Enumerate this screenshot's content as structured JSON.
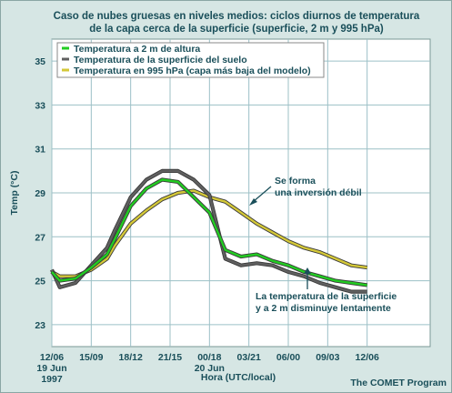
{
  "chart_data": {
    "type": "line",
    "title": "Caso de nubes gruesas en niveles medios: ciclos diurnos de temperatura",
    "subtitle": "de la capa cerca de la superficie (superficie, 2 m y 995 hPa)",
    "xlabel": "Hora (UTC/local)",
    "ylabel": "Temp (°C)",
    "ylim": [
      22,
      36
    ],
    "xlim": [
      0,
      48
    ],
    "yticks": [
      23,
      25,
      27,
      29,
      31,
      33,
      35
    ],
    "xticks": [
      {
        "x": 0,
        "label": "12/06",
        "sub1": "19 Jun",
        "sub2": "1997"
      },
      {
        "x": 5,
        "label": "15/09"
      },
      {
        "x": 10,
        "label": "18/12"
      },
      {
        "x": 15,
        "label": "21/15"
      },
      {
        "x": 20,
        "label": "00/18",
        "sub1": "20 Jun"
      },
      {
        "x": 25,
        "label": "03/21"
      },
      {
        "x": 30,
        "label": "06/00"
      },
      {
        "x": 35,
        "label": "09/03"
      },
      {
        "x": 40,
        "label": "12/06"
      }
    ],
    "grid": true,
    "legend_position": "top-left",
    "series": [
      {
        "name": "Temperatura a 2 m de altura",
        "color": "#22cc22",
        "x": [
          0,
          1,
          3,
          5,
          7,
          8,
          10,
          12,
          14,
          16,
          18,
          20,
          22,
          24,
          26,
          28,
          30,
          32,
          34,
          36,
          38,
          40
        ],
        "values": [
          25.4,
          25.0,
          25.1,
          25.6,
          26.2,
          26.9,
          28.4,
          29.2,
          29.6,
          29.5,
          28.8,
          28.1,
          26.4,
          26.1,
          26.2,
          25.9,
          25.7,
          25.4,
          25.2,
          25.0,
          24.9,
          24.8
        ]
      },
      {
        "name": "Temperatura de la superficie del suelo",
        "color": "#606060",
        "x": [
          0,
          1,
          3,
          5,
          7,
          8,
          10,
          12,
          14,
          16,
          18,
          20,
          22,
          24,
          26,
          28,
          30,
          32,
          34,
          36,
          38,
          40
        ],
        "values": [
          25.5,
          24.7,
          24.9,
          25.7,
          26.5,
          27.3,
          28.8,
          29.6,
          30.0,
          30.0,
          29.6,
          28.9,
          26.0,
          25.7,
          25.8,
          25.7,
          25.4,
          25.2,
          24.9,
          24.7,
          24.5,
          24.5
        ]
      },
      {
        "name": "Temperatura en 995 hPa (capa más baja del modelo)",
        "color": "#d4c838",
        "x": [
          0,
          1,
          3,
          5,
          7,
          8,
          10,
          12,
          14,
          16,
          18,
          20,
          22,
          24,
          26,
          28,
          30,
          32,
          34,
          36,
          38,
          40
        ],
        "values": [
          25.4,
          25.2,
          25.2,
          25.5,
          26.0,
          26.6,
          27.6,
          28.2,
          28.7,
          29.0,
          29.1,
          28.8,
          28.6,
          28.1,
          27.6,
          27.2,
          26.8,
          26.5,
          26.3,
          26.0,
          25.7,
          25.6
        ]
      }
    ],
    "annotations": [
      {
        "line1": "Se forma",
        "line2": "una inversión débil"
      },
      {
        "line1": "La temperatura de la superficie",
        "line2": "y a 2 m disminuye lentamente"
      }
    ]
  },
  "credit": "The COMET Program"
}
